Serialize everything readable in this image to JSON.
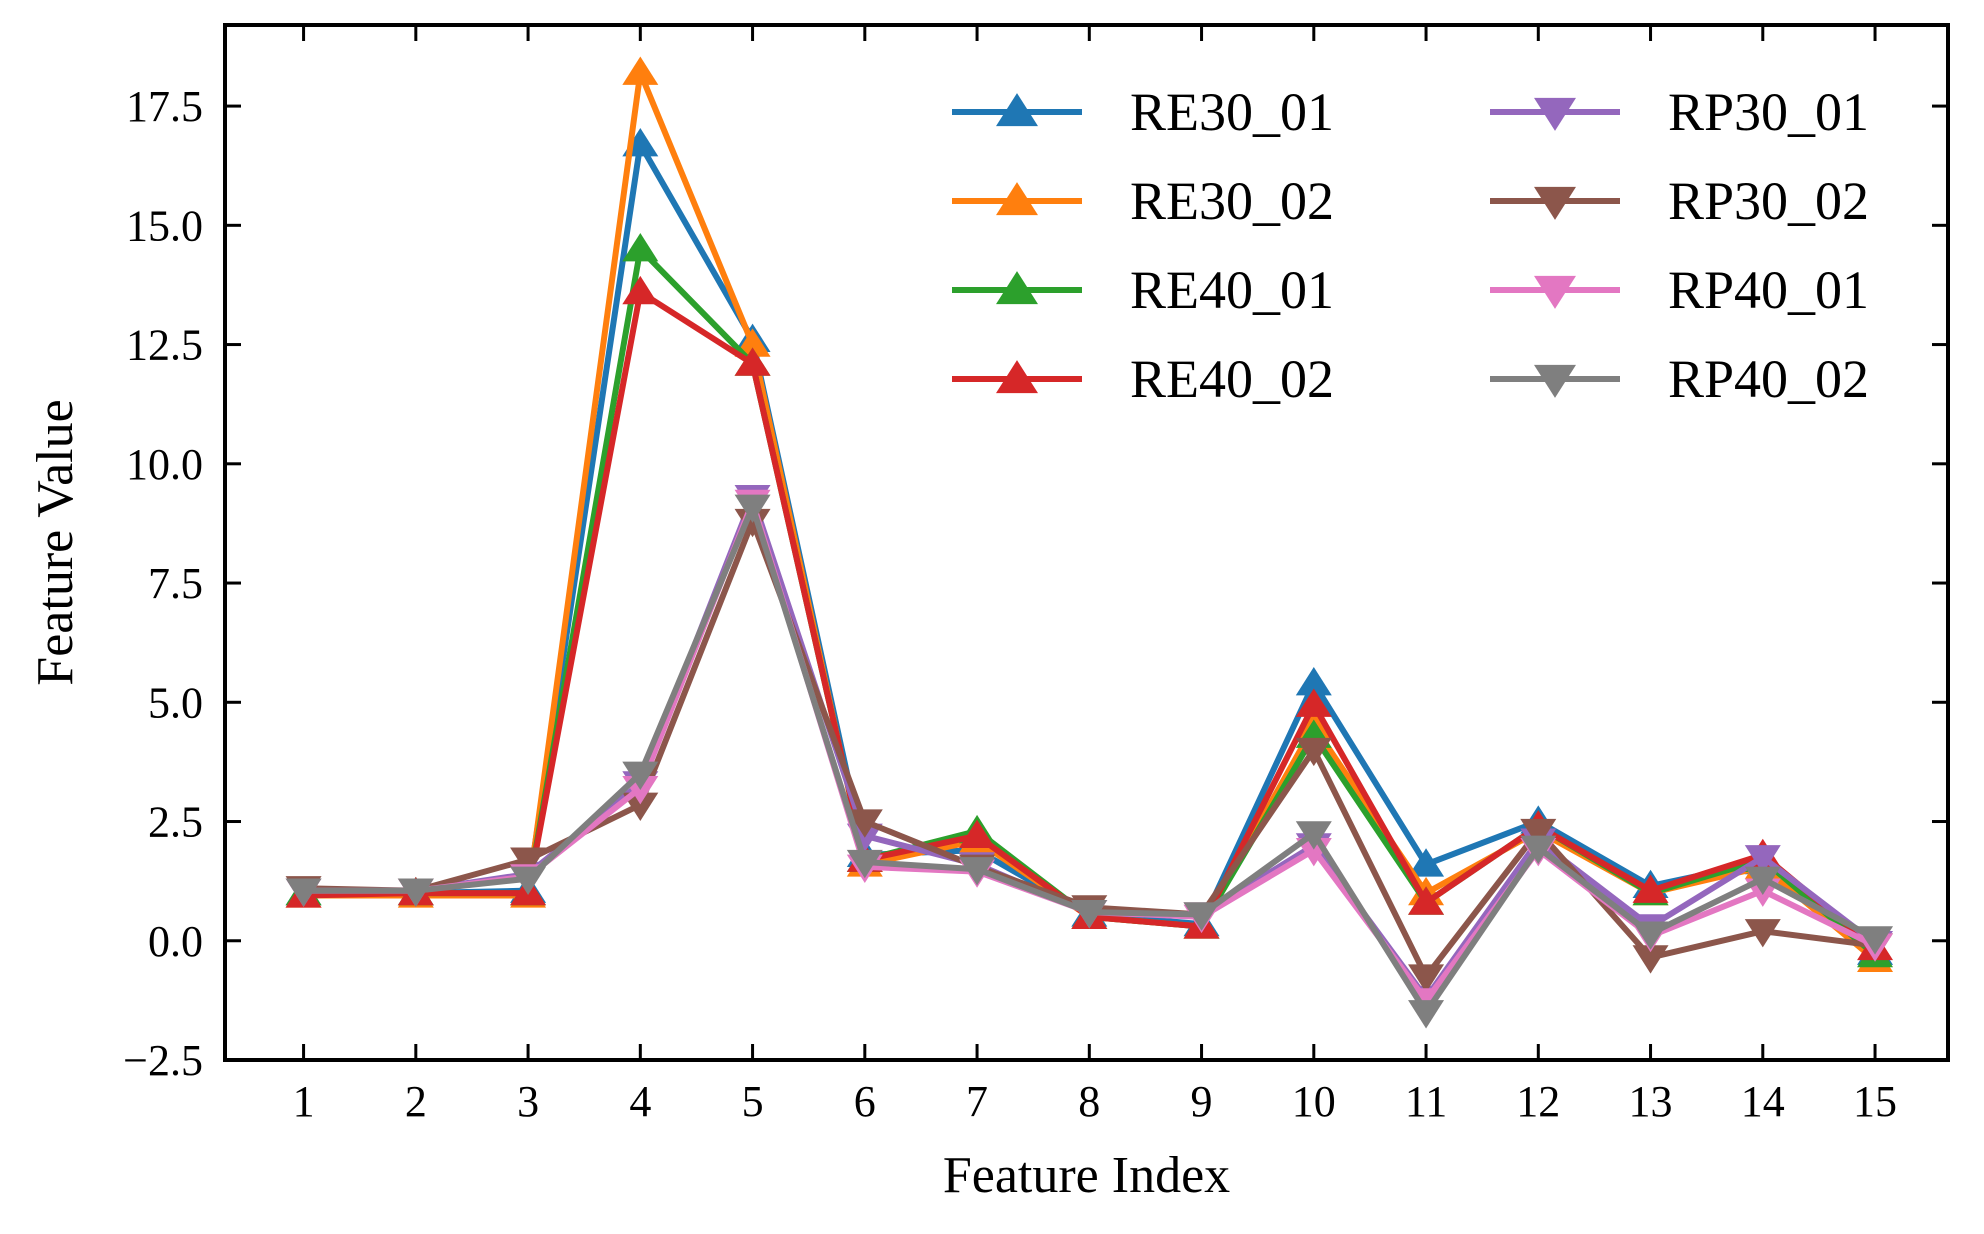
{
  "chart_data": {
    "type": "line",
    "title": "",
    "xlabel": "Feature Index",
    "ylabel": "Feature Value",
    "x": [
      1,
      2,
      3,
      4,
      5,
      6,
      7,
      8,
      9,
      10,
      11,
      12,
      13,
      14,
      15
    ],
    "x_tick_labels": [
      "1",
      "2",
      "3",
      "4",
      "5",
      "6",
      "7",
      "8",
      "9",
      "10",
      "11",
      "12",
      "13",
      "14",
      "15"
    ],
    "xlim": [
      0.3,
      15.65
    ],
    "ylim": [
      -2.5,
      19.2
    ],
    "y_ticks": [
      -2.5,
      0.0,
      2.5,
      5.0,
      7.5,
      10.0,
      12.5,
      15.0,
      17.5
    ],
    "y_tick_labels": [
      "−2.5",
      "0.0",
      "2.5",
      "5.0",
      "7.5",
      "10.0",
      "12.5",
      "15.0",
      "17.5"
    ],
    "grid": false,
    "legend_position": "top-right",
    "legend_columns": 2,
    "series": [
      {
        "name": "RE30_01",
        "color": "#1f77b4",
        "marker": "triangle-up",
        "values": [
          1.0,
          1.0,
          1.05,
          16.7,
          12.6,
          1.8,
          1.9,
          0.55,
          0.35,
          5.4,
          1.6,
          2.5,
          1.15,
          1.65,
          -0.25
        ]
      },
      {
        "name": "RE30_02",
        "color": "#ff7f0e",
        "marker": "triangle-up",
        "values": [
          0.95,
          0.95,
          0.95,
          18.2,
          12.5,
          1.6,
          2.1,
          0.5,
          0.3,
          4.5,
          1.0,
          2.3,
          1.0,
          1.55,
          -0.4
        ]
      },
      {
        "name": "RE40_01",
        "color": "#2ca02c",
        "marker": "triangle-up",
        "values": [
          1.0,
          1.0,
          1.0,
          14.5,
          12.1,
          1.7,
          2.3,
          0.5,
          0.3,
          4.3,
          0.8,
          2.4,
          1.0,
          1.7,
          -0.3
        ]
      },
      {
        "name": "RE40_02",
        "color": "#d62728",
        "marker": "triangle-up",
        "values": [
          0.95,
          1.0,
          1.0,
          13.6,
          12.1,
          1.7,
          2.2,
          0.5,
          0.3,
          4.95,
          0.8,
          2.4,
          1.05,
          1.8,
          -0.15
        ]
      },
      {
        "name": "RP30_01",
        "color": "#9467bd",
        "marker": "triangle-down",
        "values": [
          1.05,
          1.05,
          1.4,
          3.3,
          9.3,
          2.2,
          1.6,
          0.6,
          0.55,
          2.0,
          -1.2,
          2.1,
          0.3,
          1.75,
          -0.05
        ]
      },
      {
        "name": "RP30_02",
        "color": "#8c564b",
        "marker": "triangle-down",
        "values": [
          1.1,
          1.05,
          1.7,
          2.85,
          8.8,
          2.5,
          1.55,
          0.7,
          0.55,
          4.0,
          -0.75,
          2.3,
          -0.35,
          0.2,
          -0.1
        ]
      },
      {
        "name": "RP40_01",
        "color": "#e377c2",
        "marker": "triangle-down",
        "values": [
          1.05,
          1.05,
          1.35,
          3.2,
          9.2,
          1.55,
          1.45,
          0.6,
          0.5,
          1.9,
          -1.25,
          1.9,
          0.1,
          1.05,
          -0.1
        ]
      },
      {
        "name": "RP40_02",
        "color": "#7f7f7f",
        "marker": "triangle-down",
        "values": [
          1.05,
          1.05,
          1.3,
          3.5,
          9.1,
          1.65,
          1.5,
          0.6,
          0.55,
          2.25,
          -1.5,
          1.95,
          0.15,
          1.3,
          0.05
        ]
      }
    ]
  }
}
